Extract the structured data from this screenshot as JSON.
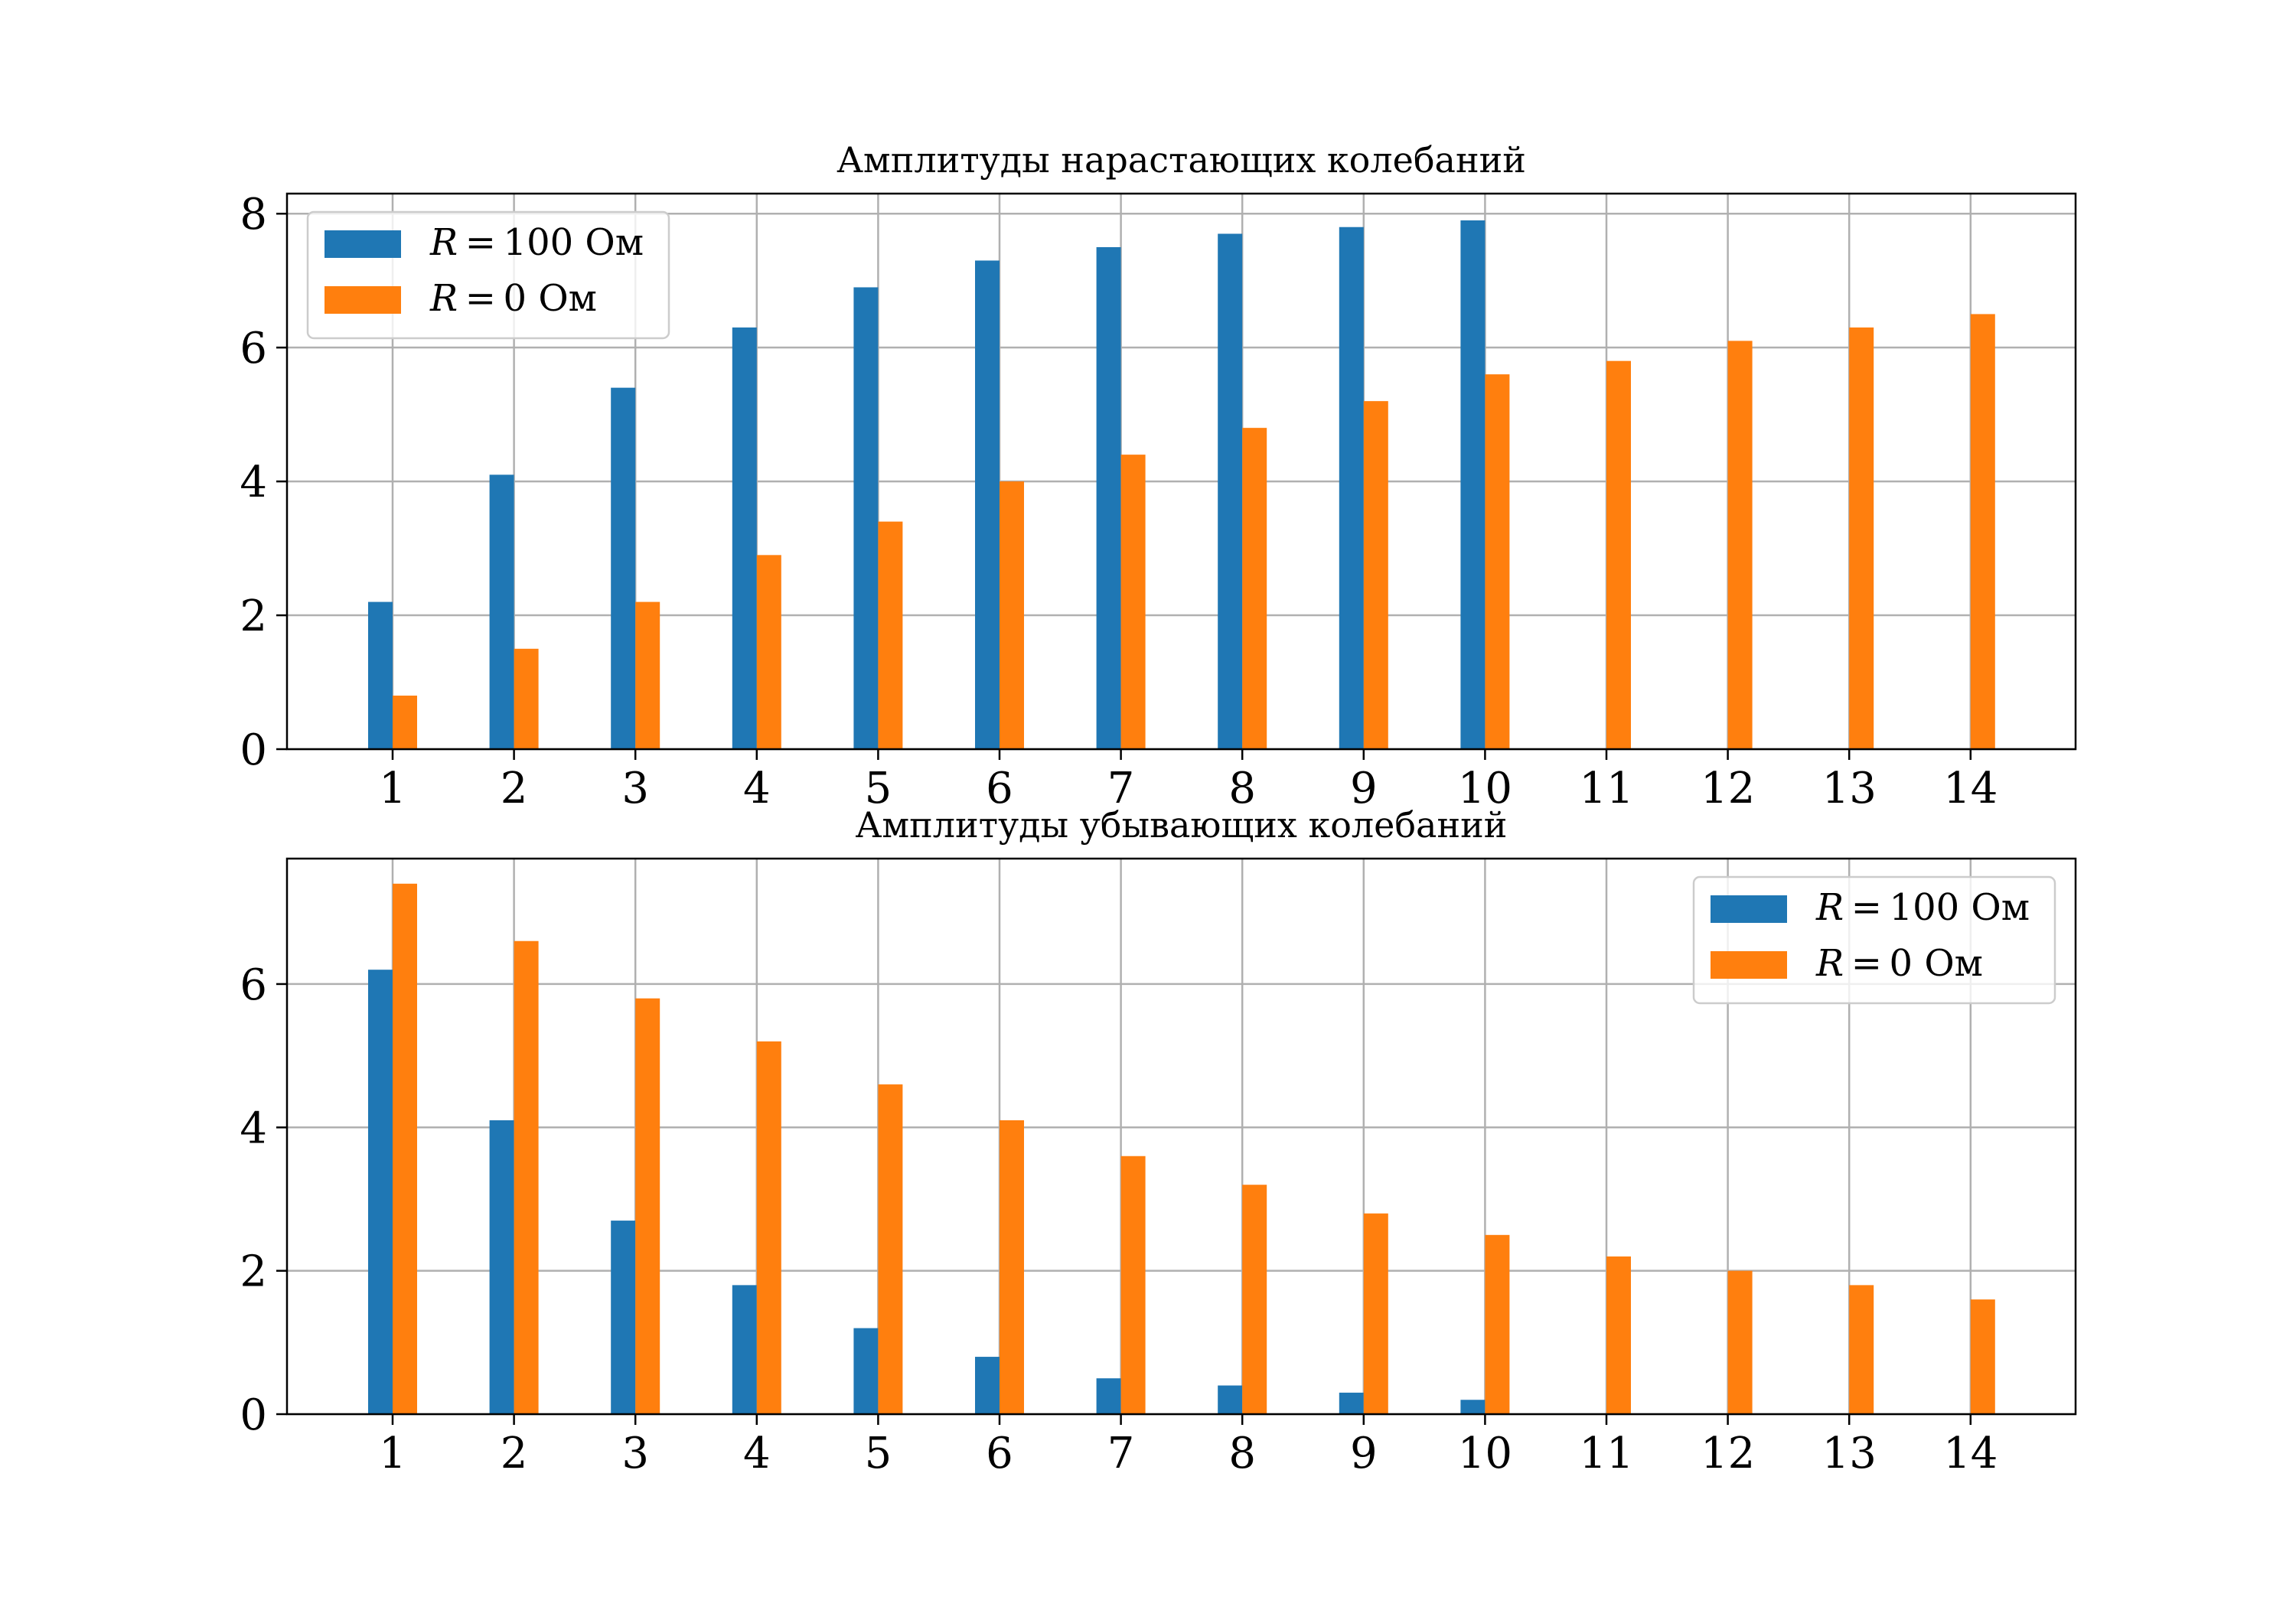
{
  "chart_data": [
    {
      "type": "bar",
      "title": "Амплитуды нарастающих колебаний",
      "xlabel": "",
      "ylabel": "",
      "categories": [
        "1",
        "2",
        "3",
        "4",
        "5",
        "6",
        "7",
        "8",
        "9",
        "10",
        "11",
        "12",
        "13",
        "14"
      ],
      "series": [
        {
          "name": "R = 100 Ом",
          "color": "#1f77b4",
          "values": [
            2.2,
            4.1,
            5.4,
            6.3,
            6.9,
            7.3,
            7.5,
            7.7,
            7.8,
            7.9,
            null,
            null,
            null,
            null
          ]
        },
        {
          "name": "R = 0 Ом",
          "color": "#ff7f0e",
          "values": [
            0.8,
            1.5,
            2.2,
            2.9,
            3.4,
            4.0,
            4.4,
            4.8,
            5.2,
            5.6,
            5.8,
            6.1,
            6.3,
            6.5
          ]
        }
      ],
      "ylim": [
        0,
        8.3
      ],
      "yticks": [
        "0",
        "2",
        "4",
        "6",
        "8"
      ],
      "grid": true,
      "legend": {
        "position": "top-left",
        "entries": [
          "R = 100 Ом",
          "R = 0 Ом"
        ]
      }
    },
    {
      "type": "bar",
      "title": "Амплитуды убывающих колебаний",
      "xlabel": "",
      "ylabel": "",
      "categories": [
        "1",
        "2",
        "3",
        "4",
        "5",
        "6",
        "7",
        "8",
        "9",
        "10",
        "11",
        "12",
        "13",
        "14"
      ],
      "series": [
        {
          "name": "R = 100 Ом",
          "color": "#1f77b4",
          "values": [
            6.2,
            4.1,
            2.7,
            1.8,
            1.2,
            0.8,
            0.5,
            0.4,
            0.3,
            0.2,
            null,
            null,
            null,
            null
          ]
        },
        {
          "name": "R = 0 Ом",
          "color": "#ff7f0e",
          "values": [
            7.4,
            6.6,
            5.8,
            5.2,
            4.6,
            4.1,
            3.6,
            3.2,
            2.8,
            2.5,
            2.2,
            2.0,
            1.8,
            1.6
          ]
        }
      ],
      "ylim": [
        0,
        7.75
      ],
      "yticks": [
        "0",
        "2",
        "4",
        "6"
      ],
      "grid": true,
      "legend": {
        "position": "top-right",
        "entries": [
          "R = 100 Ом",
          "R = 0 Ом"
        ]
      }
    }
  ]
}
